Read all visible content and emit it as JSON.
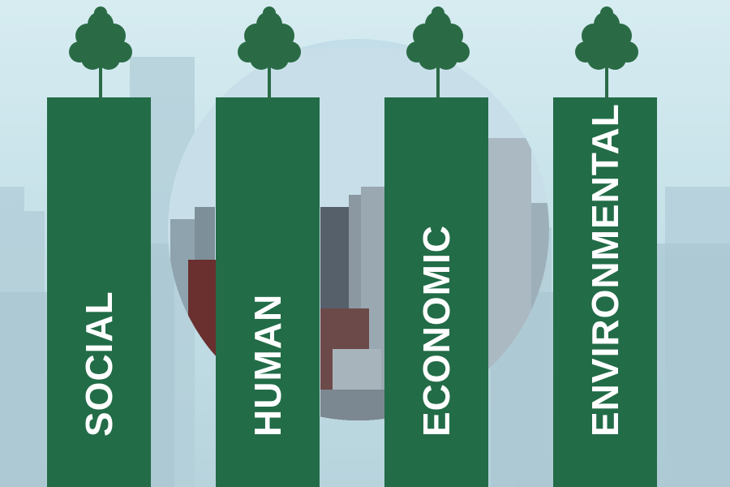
{
  "pillars": [
    {
      "label": "SOCIAL"
    },
    {
      "label": "HUMAN"
    },
    {
      "label": "ECONOMIC"
    },
    {
      "label": "ENVIRONMENTAL"
    }
  ],
  "colors": {
    "pillar": "#226c48",
    "tree": "#2a6b46",
    "sky": "#c9e3ea"
  },
  "icons": [
    "tree-icon",
    "city-skyline-background"
  ]
}
